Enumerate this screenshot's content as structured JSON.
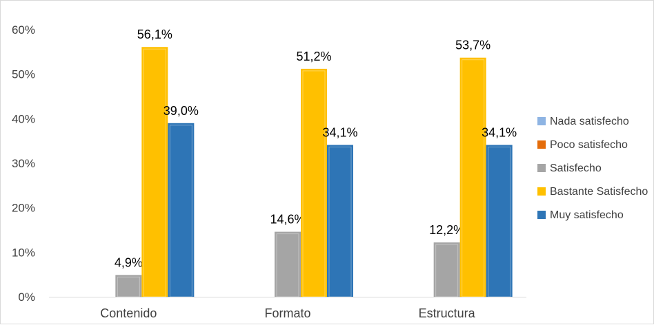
{
  "chart_data": {
    "type": "bar",
    "categories": [
      "Contenido",
      "Formato",
      "Estructura"
    ],
    "series": [
      {
        "name": "Nada satisfecho",
        "color": "#8eb4e3",
        "values": [
          0,
          0,
          0
        ],
        "labels": [
          "",
          "",
          ""
        ]
      },
      {
        "name": "Poco satisfecho",
        "color": "#e46c0a",
        "values": [
          0,
          0,
          0
        ],
        "labels": [
          "",
          "",
          ""
        ]
      },
      {
        "name": "Satisfecho",
        "color": "#a5a5a5",
        "values": [
          4.9,
          14.6,
          12.2
        ],
        "labels": [
          "4,9%",
          "14,6%",
          "12,2%"
        ]
      },
      {
        "name": "Bastante Satisfecho",
        "color": "#ffc000",
        "values": [
          56.1,
          51.2,
          53.7
        ],
        "labels": [
          "56,1%",
          "51,2%",
          "53,7%"
        ]
      },
      {
        "name": "Muy satisfecho",
        "color": "#2e75b6",
        "values": [
          39.0,
          34.1,
          34.1
        ],
        "labels": [
          "39,0%",
          "34,1%",
          "34,1%"
        ]
      }
    ],
    "yticks": [
      0,
      10,
      20,
      30,
      40,
      50,
      60
    ],
    "ytick_labels": [
      "0%",
      "10%",
      "20%",
      "30%",
      "40%",
      "50%",
      "60%"
    ],
    "ylim": [
      0,
      60
    ],
    "grid": false,
    "legend": "right"
  }
}
